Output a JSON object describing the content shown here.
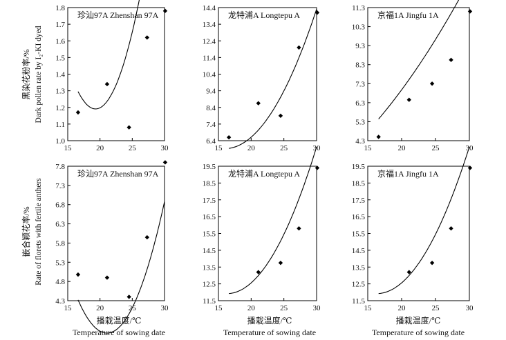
{
  "figure": {
    "ylabel_top_cn": "黑染花粉率/%",
    "ylabel_top_en": "Dark pollen rate by I₂-KI dyed",
    "ylabel_bottom_cn": "嵌合颖花率/%",
    "ylabel_bottom_en": "Rate of florets with fertile anthers",
    "xlabel_cn": "播栽温度/℃",
    "xlabel_en": "Temperature of sowing date"
  },
  "chart_data": [
    {
      "type": "scatter",
      "title": "珍汕97A  Zhenshan 97A",
      "xlim": [
        15,
        30
      ],
      "ylim": [
        1.0,
        1.8
      ],
      "xticks": [
        15,
        20,
        25,
        30
      ],
      "yticks": [
        1.0,
        1.1,
        1.2,
        1.3,
        1.4,
        1.5,
        1.6,
        1.7,
        1.8
      ],
      "decimals": 1,
      "x": [
        16.6,
        21.1,
        24.5,
        27.3,
        30.1
      ],
      "y": [
        1.17,
        1.34,
        1.08,
        1.62,
        1.78
      ],
      "fit": {
        "kind": "quadratic",
        "x_range": [
          16.6,
          30.2
        ],
        "coef": [
          6.5126,
          -0.5512,
          0.014273
        ]
      }
    },
    {
      "type": "scatter",
      "title": "龙特浦A  Longtepu A",
      "xlim": [
        15,
        30
      ],
      "ylim": [
        6.4,
        14.4
      ],
      "xticks": [
        15,
        20,
        25,
        30
      ],
      "yticks": [
        6.4,
        7.4,
        8.4,
        9.4,
        10.4,
        11.4,
        12.4,
        13.4,
        14.4
      ],
      "decimals": 1,
      "x": [
        16.6,
        21.1,
        24.5,
        27.3,
        30.1
      ],
      "y": [
        6.6,
        8.65,
        7.9,
        12.0,
        14.1
      ],
      "fit": {
        "kind": "quadratic",
        "x_range": [
          16.6,
          30.0
        ],
        "coef": [
          16.86,
          -1.3675,
          0.04275
        ]
      }
    },
    {
      "type": "scatter",
      "title": "京福1A  Jingfu 1A",
      "xlim": [
        15,
        30
      ],
      "ylim": [
        4.3,
        11.3
      ],
      "xticks": [
        15,
        20,
        25,
        30
      ],
      "yticks": [
        4.3,
        5.3,
        6.3,
        7.3,
        8.3,
        9.3,
        10.3,
        11.3
      ],
      "decimals": 1,
      "x": [
        16.6,
        21.1,
        24.5,
        27.3,
        30.1
      ],
      "y": [
        4.5,
        6.45,
        7.3,
        8.55,
        11.1
      ],
      "fit": {
        "kind": "quadratic",
        "x_range": [
          16.6,
          30.0
        ],
        "coef": [
          1.0124,
          0.11326,
          0.009244
        ]
      }
    },
    {
      "type": "scatter",
      "title": "珍汕97A  Zhenshan 97A",
      "xlim": [
        15,
        30
      ],
      "ylim": [
        4.3,
        7.8
      ],
      "xticks": [
        15,
        20,
        25,
        30
      ],
      "yticks": [
        4.3,
        4.8,
        5.3,
        5.8,
        6.3,
        6.8,
        7.3,
        7.8
      ],
      "decimals": 1,
      "x": [
        16.6,
        21.1,
        24.5,
        27.3,
        30.1
      ],
      "y": [
        4.98,
        4.9,
        4.4,
        5.95,
        7.9
      ],
      "fit": {
        "kind": "quadratic",
        "x_range": [
          16.6,
          30.0
        ],
        "coef": [
          22.59,
          -1.8152,
          0.04305
        ]
      }
    },
    {
      "type": "scatter",
      "title": "龙特浦A  Longtepu A",
      "xlim": [
        15,
        30
      ],
      "ylim": [
        11.5,
        19.5
      ],
      "xticks": [
        15,
        20,
        25,
        30
      ],
      "yticks": [
        11.5,
        12.5,
        13.5,
        14.5,
        15.5,
        16.5,
        17.5,
        18.5,
        19.5
      ],
      "decimals": 1,
      "x": [
        21.1,
        24.5,
        27.3,
        30.1
      ],
      "y": [
        13.2,
        13.75,
        15.8,
        19.4
      ],
      "fit": {
        "kind": "quadratic",
        "x_range": [
          16.6,
          30.0
        ],
        "coef": [
          24.22,
          -1.5112,
          0.04641
        ]
      }
    },
    {
      "type": "scatter",
      "title": "京福1A  Jingfu 1A",
      "xlim": [
        15,
        30
      ],
      "ylim": [
        11.5,
        19.5
      ],
      "xticks": [
        15,
        20,
        25,
        30
      ],
      "yticks": [
        11.5,
        12.5,
        13.5,
        14.5,
        15.5,
        16.5,
        17.5,
        18.5,
        19.5
      ],
      "decimals": 1,
      "x": [
        21.1,
        24.5,
        27.3,
        30.1
      ],
      "y": [
        13.2,
        13.75,
        15.8,
        19.4
      ],
      "fit": {
        "kind": "quadratic",
        "x_range": [
          16.6,
          30.0
        ],
        "coef": [
          24.22,
          -1.5112,
          0.04641
        ]
      }
    }
  ]
}
